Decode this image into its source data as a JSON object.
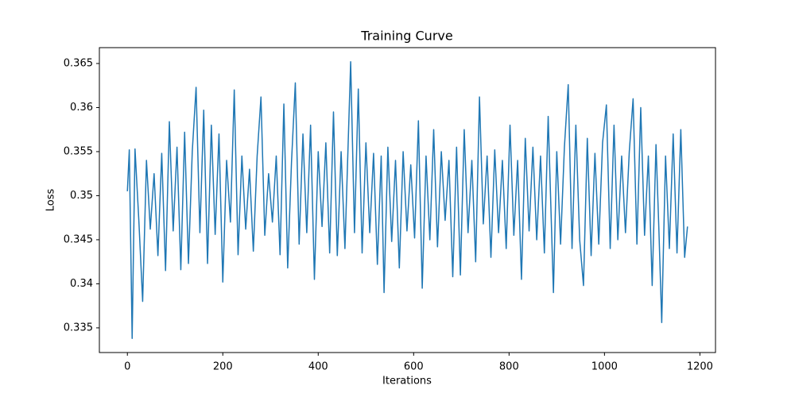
{
  "chart_data": {
    "type": "line",
    "title": "Training Curve",
    "x_label": "Iterations",
    "y_label": "Loss",
    "series": [
      {
        "name": "Loss",
        "color": "#1f77b4",
        "x": [
          0,
          4,
          10,
          16,
          24,
          32,
          40,
          48,
          56,
          64,
          72,
          80,
          88,
          96,
          104,
          112,
          120,
          128,
          136,
          144,
          152,
          160,
          168,
          176,
          184,
          192,
          200,
          208,
          216,
          224,
          232,
          240,
          248,
          256,
          264,
          272,
          280,
          288,
          296,
          304,
          312,
          320,
          328,
          336,
          344,
          352,
          360,
          368,
          376,
          384,
          392,
          400,
          408,
          416,
          424,
          432,
          440,
          448,
          456,
          468,
          476,
          484,
          492,
          500,
          508,
          516,
          524,
          532,
          538,
          546,
          554,
          562,
          570,
          578,
          586,
          594,
          602,
          610,
          618,
          626,
          634,
          642,
          650,
          658,
          666,
          674,
          682,
          690,
          698,
          706,
          714,
          722,
          730,
          738,
          746,
          754,
          762,
          770,
          778,
          786,
          794,
          802,
          810,
          818,
          826,
          834,
          842,
          850,
          858,
          866,
          874,
          882,
          893,
          900,
          908,
          916,
          924,
          932,
          940,
          948,
          956,
          964,
          972,
          980,
          988,
          996,
          1004,
          1012,
          1020,
          1028,
          1036,
          1044,
          1052,
          1060,
          1068,
          1076,
          1084,
          1092,
          1100,
          1108,
          1114,
          1120,
          1128,
          1136,
          1144,
          1152,
          1160,
          1168,
          1174
        ],
        "values": [
          0.3505,
          0.3552,
          0.3338,
          0.3553,
          0.3472,
          0.338,
          0.354,
          0.3462,
          0.3525,
          0.3432,
          0.3548,
          0.3415,
          0.3584,
          0.346,
          0.3555,
          0.3416,
          0.3572,
          0.3423,
          0.355,
          0.3623,
          0.3458,
          0.3597,
          0.3423,
          0.358,
          0.3456,
          0.357,
          0.3402,
          0.354,
          0.347,
          0.362,
          0.3433,
          0.3545,
          0.3462,
          0.353,
          0.3437,
          0.3545,
          0.3612,
          0.3455,
          0.3525,
          0.347,
          0.3545,
          0.3433,
          0.3604,
          0.3418,
          0.3538,
          0.3628,
          0.3445,
          0.357,
          0.3458,
          0.358,
          0.3405,
          0.355,
          0.3465,
          0.356,
          0.3435,
          0.3595,
          0.3432,
          0.355,
          0.344,
          0.3652,
          0.3458,
          0.3621,
          0.3435,
          0.356,
          0.3458,
          0.3548,
          0.3422,
          0.3545,
          0.339,
          0.3555,
          0.3448,
          0.354,
          0.3418,
          0.355,
          0.346,
          0.3535,
          0.3452,
          0.3585,
          0.3395,
          0.3545,
          0.345,
          0.3575,
          0.3442,
          0.355,
          0.3472,
          0.354,
          0.3408,
          0.3555,
          0.341,
          0.3575,
          0.3458,
          0.354,
          0.3425,
          0.3612,
          0.3468,
          0.3545,
          0.343,
          0.3552,
          0.3458,
          0.354,
          0.344,
          0.358,
          0.3455,
          0.354,
          0.3405,
          0.3565,
          0.346,
          0.3555,
          0.345,
          0.3545,
          0.3435,
          0.359,
          0.339,
          0.355,
          0.3445,
          0.3555,
          0.3626,
          0.344,
          0.358,
          0.345,
          0.3398,
          0.3565,
          0.3432,
          0.3548,
          0.3445,
          0.356,
          0.3603,
          0.344,
          0.358,
          0.345,
          0.3545,
          0.3458,
          0.355,
          0.361,
          0.3445,
          0.36,
          0.3455,
          0.3545,
          0.3398,
          0.3558,
          0.3462,
          0.3356,
          0.3545,
          0.344,
          0.357,
          0.3435,
          0.3575,
          0.343,
          0.3465
        ]
      }
    ],
    "xlim": [
      -58.7,
      1232.7
    ],
    "ylim": [
      0.3322,
      0.3668
    ],
    "xticks": [
      0,
      200,
      400,
      600,
      800,
      1000,
      1200
    ],
    "yticks": [
      0.335,
      0.34,
      0.345,
      0.35,
      0.355,
      0.36,
      0.365
    ],
    "grid": false
  }
}
